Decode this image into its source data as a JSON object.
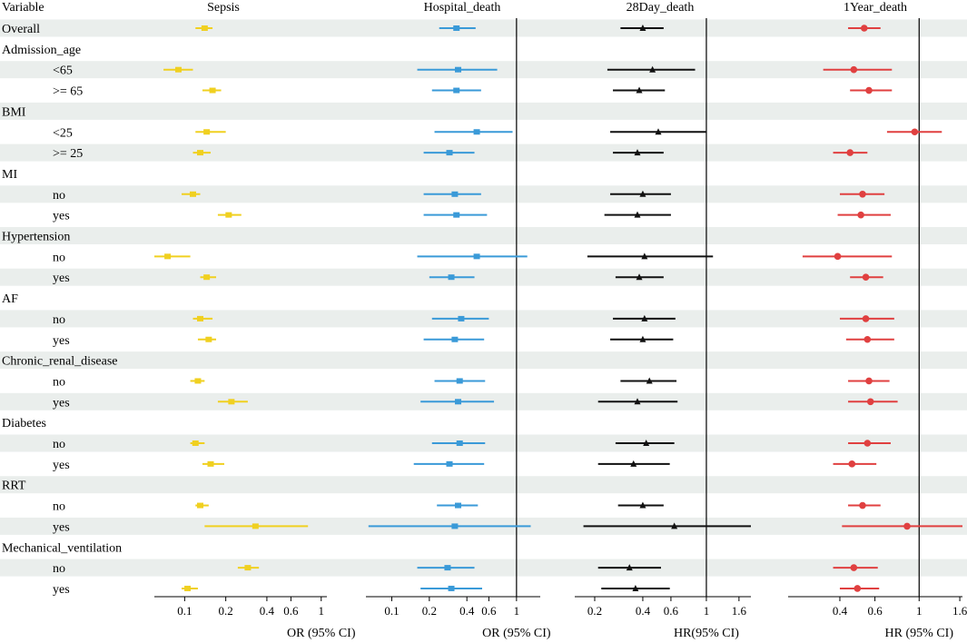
{
  "chart_data": {
    "type": "forest",
    "row_label_header": "Variable",
    "rows": [
      {
        "label": "Overall",
        "indent": false
      },
      {
        "label": "Admission_age",
        "indent": false
      },
      {
        "label": "<65",
        "indent": true
      },
      {
        "label": ">= 65",
        "indent": true
      },
      {
        "label": "BMI",
        "indent": false
      },
      {
        "label": "<25",
        "indent": true
      },
      {
        "label": ">= 25",
        "indent": true
      },
      {
        "label": "MI",
        "indent": false
      },
      {
        "label": "no",
        "indent": true
      },
      {
        "label": "yes",
        "indent": true
      },
      {
        "label": "Hypertension",
        "indent": false
      },
      {
        "label": "no",
        "indent": true
      },
      {
        "label": "yes",
        "indent": true
      },
      {
        "label": "AF",
        "indent": false
      },
      {
        "label": "no",
        "indent": true
      },
      {
        "label": "yes",
        "indent": true
      },
      {
        "label": "Chronic_renal_disease",
        "indent": false
      },
      {
        "label": "no",
        "indent": true
      },
      {
        "label": "yes",
        "indent": true
      },
      {
        "label": "Diabetes",
        "indent": false
      },
      {
        "label": "no",
        "indent": true
      },
      {
        "label": "yes",
        "indent": true
      },
      {
        "label": "RRT",
        "indent": false
      },
      {
        "label": "no",
        "indent": true
      },
      {
        "label": "yes",
        "indent": true
      },
      {
        "label": "Mechanical_ventilation",
        "indent": false
      },
      {
        "label": "no",
        "indent": true
      },
      {
        "label": "yes",
        "indent": true
      }
    ],
    "panels": [
      {
        "title": "Sepsis",
        "xlabel": "OR (95% CI)",
        "scale": "log",
        "xlim": [
          0.06,
          1.1
        ],
        "ticks": [
          0.1,
          0.2,
          0.4,
          0.6,
          1
        ],
        "tick_labels": [
          "0.1",
          "0.2",
          "0.4",
          "0.6",
          "1"
        ],
        "reference_line": null,
        "color": "#f0d020",
        "marker": "square",
        "estimates": [
          [
            0.14,
            0.12,
            0.16
          ],
          null,
          [
            0.09,
            0.07,
            0.115
          ],
          [
            0.16,
            0.135,
            0.185
          ],
          null,
          [
            0.145,
            0.12,
            0.2
          ],
          [
            0.13,
            0.115,
            0.155
          ],
          null,
          [
            0.115,
            0.095,
            0.13
          ],
          [
            0.21,
            0.175,
            0.26
          ],
          null,
          [
            0.075,
            0.06,
            0.11
          ],
          [
            0.145,
            0.13,
            0.17
          ],
          null,
          [
            0.13,
            0.115,
            0.16
          ],
          [
            0.15,
            0.125,
            0.17
          ],
          null,
          [
            0.125,
            0.11,
            0.14
          ],
          [
            0.22,
            0.175,
            0.29
          ],
          null,
          [
            0.12,
            0.11,
            0.14
          ],
          [
            0.155,
            0.135,
            0.195
          ],
          null,
          [
            0.13,
            0.12,
            0.15
          ],
          [
            0.33,
            0.14,
            0.8
          ],
          null,
          [
            0.29,
            0.245,
            0.35
          ],
          [
            0.105,
            0.095,
            0.125
          ]
        ]
      },
      {
        "title": "Hospital_death",
        "xlabel": "OR (95% CI)",
        "scale": "log",
        "xlim": [
          0.062,
          1.55
        ],
        "ticks": [
          0.1,
          0.2,
          0.4,
          0.6,
          1
        ],
        "tick_labels": [
          "0.1",
          "0.2",
          "0.4",
          "0.6",
          "1"
        ],
        "reference_line": 1,
        "color": "#3a9ad8",
        "marker": "square",
        "estimates": [
          [
            0.33,
            0.24,
            0.47
          ],
          null,
          [
            0.34,
            0.16,
            0.7
          ],
          [
            0.33,
            0.21,
            0.52
          ],
          null,
          [
            0.48,
            0.22,
            0.93
          ],
          [
            0.29,
            0.18,
            0.46
          ],
          null,
          [
            0.32,
            0.18,
            0.52
          ],
          [
            0.33,
            0.18,
            0.58
          ],
          null,
          [
            0.48,
            0.16,
            1.22
          ],
          [
            0.3,
            0.2,
            0.46
          ],
          null,
          [
            0.36,
            0.21,
            0.6
          ],
          [
            0.32,
            0.18,
            0.55
          ],
          null,
          [
            0.35,
            0.22,
            0.56
          ],
          [
            0.34,
            0.17,
            0.66
          ],
          null,
          [
            0.35,
            0.21,
            0.56
          ],
          [
            0.29,
            0.15,
            0.55
          ],
          null,
          [
            0.34,
            0.23,
            0.49
          ],
          [
            0.32,
            0.065,
            1.3
          ],
          null,
          [
            0.28,
            0.16,
            0.46
          ],
          [
            0.3,
            0.17,
            0.53
          ]
        ]
      },
      {
        "title": "28Day_death",
        "xlabel": "HR(95% CI)",
        "scale": "log",
        "xlim": [
          0.15,
          1.9
        ],
        "ticks": [
          0.2,
          0.4,
          0.6,
          1,
          1.6
        ],
        "tick_labels": [
          "0.2",
          "0.4",
          "0.6",
          "1",
          "1.6"
        ],
        "reference_line": 1,
        "color": "#111111",
        "marker": "triangle",
        "estimates": [
          [
            0.4,
            0.29,
            0.54
          ],
          null,
          [
            0.46,
            0.24,
            0.85
          ],
          [
            0.38,
            0.26,
            0.55
          ],
          null,
          [
            0.5,
            0.25,
            1.0
          ],
          [
            0.37,
            0.26,
            0.54
          ],
          null,
          [
            0.4,
            0.25,
            0.6
          ],
          [
            0.37,
            0.23,
            0.6
          ],
          null,
          [
            0.41,
            0.18,
            1.1
          ],
          [
            0.38,
            0.27,
            0.54
          ],
          null,
          [
            0.41,
            0.26,
            0.64
          ],
          [
            0.4,
            0.25,
            0.62
          ],
          null,
          [
            0.44,
            0.29,
            0.65
          ],
          [
            0.37,
            0.21,
            0.66
          ],
          null,
          [
            0.42,
            0.27,
            0.63
          ],
          [
            0.35,
            0.21,
            0.59
          ],
          null,
          [
            0.4,
            0.28,
            0.54
          ],
          [
            0.63,
            0.17,
            1.9
          ],
          null,
          [
            0.33,
            0.21,
            0.52
          ],
          [
            0.36,
            0.22,
            0.59
          ]
        ]
      },
      {
        "title": "1Year_death",
        "xlabel": "HR (95% CI)",
        "scale": "log",
        "xlim": [
          0.22,
          1.65
        ],
        "ticks": [
          0.4,
          0.6,
          1,
          1.6
        ],
        "tick_labels": [
          "0.4",
          "0.6",
          "1",
          "1.6"
        ],
        "reference_line": 1,
        "color": "#e04040",
        "marker": "circle",
        "estimates": [
          [
            0.53,
            0.44,
            0.64
          ],
          null,
          [
            0.47,
            0.33,
            0.73
          ],
          [
            0.56,
            0.45,
            0.73
          ],
          null,
          [
            0.95,
            0.69,
            1.3
          ],
          [
            0.45,
            0.37,
            0.55
          ],
          null,
          [
            0.52,
            0.4,
            0.67
          ],
          [
            0.51,
            0.39,
            0.72
          ],
          null,
          [
            0.39,
            0.26,
            0.73
          ],
          [
            0.54,
            0.45,
            0.66
          ],
          null,
          [
            0.54,
            0.4,
            0.75
          ],
          [
            0.55,
            0.43,
            0.75
          ],
          null,
          [
            0.56,
            0.44,
            0.71
          ],
          [
            0.57,
            0.44,
            0.78
          ],
          null,
          [
            0.55,
            0.44,
            0.72
          ],
          [
            0.46,
            0.37,
            0.61
          ],
          null,
          [
            0.52,
            0.44,
            0.64
          ],
          [
            0.87,
            0.41,
            1.65
          ],
          null,
          [
            0.47,
            0.37,
            0.62
          ],
          [
            0.49,
            0.4,
            0.63
          ]
        ]
      }
    ]
  }
}
